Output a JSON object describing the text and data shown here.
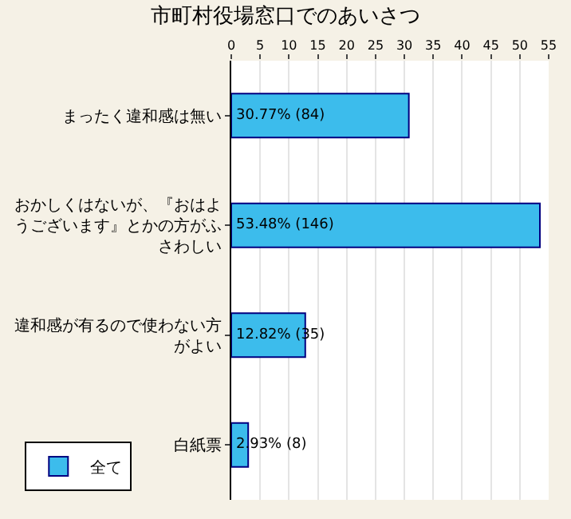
{
  "chart_data": {
    "type": "bar",
    "orientation": "horizontal",
    "title": "市町村役場窓口でのあいさつ",
    "categories": [
      "まったく違和感は無い",
      "おかしくはないが、『おはようございます』とかの方がふさわしい",
      "違和感が有るので使わない方がよい",
      "白紙票"
    ],
    "series": [
      {
        "name": "全て",
        "color": "#3cbcec",
        "values": [
          30.77,
          53.48,
          12.82,
          2.93
        ],
        "value_labels": [
          "30.77% (84)",
          "53.48% (146)",
          "12.82% (35)",
          "2.93% (8)"
        ]
      }
    ],
    "xlim": [
      0,
      55
    ],
    "xticks": [
      0,
      5,
      10,
      15,
      20,
      25,
      30,
      35,
      40,
      45,
      50,
      55
    ],
    "grid": "x",
    "legend": "bottom left"
  }
}
